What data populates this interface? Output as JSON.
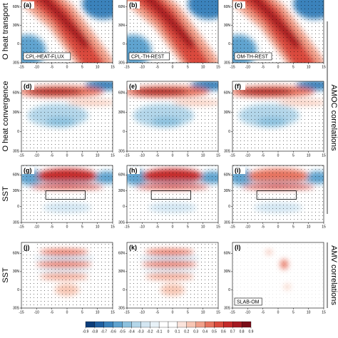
{
  "figure": {
    "panels": [
      {
        "label": "(a)",
        "name": "CPL-HEAT-FLUX"
      },
      {
        "label": "(b)",
        "name": "CPL-TH-REST"
      },
      {
        "label": "(c)",
        "name": "OM-TH-REST"
      },
      {
        "label": "(d)"
      },
      {
        "label": "(e)"
      },
      {
        "label": "(f)"
      },
      {
        "label": "(g)"
      },
      {
        "label": "(h)"
      },
      {
        "label": "(i)"
      },
      {
        "label": "(j)"
      },
      {
        "label": "(k)"
      },
      {
        "label": "(l)",
        "name": "SLAB-OM"
      }
    ],
    "row_labels": [
      "O heat transport",
      "O heat convergence",
      "SST",
      "SST"
    ],
    "side_labels": [
      "AMOC correlations",
      "AMV correlations"
    ],
    "xlim": [
      -15,
      15
    ],
    "xticks": [
      -15,
      -10,
      -5,
      0,
      5,
      10,
      15
    ],
    "ylim": [
      -30,
      78
    ],
    "yticks": [
      {
        "value": 60,
        "label": "60N"
      },
      {
        "value": 30,
        "label": "30N"
      },
      0,
      {
        "value": -30,
        "label": "30S"
      }
    ],
    "colorbar": {
      "ticks": [
        -0.9,
        -0.8,
        -0.7,
        -0.6,
        -0.5,
        -0.4,
        -0.3,
        -0.2,
        -0.1,
        0,
        0.1,
        0.2,
        0.3,
        0.4,
        0.5,
        0.6,
        0.7,
        0.8,
        0.9
      ],
      "colors": [
        "#0b3d7a",
        "#1f5fa0",
        "#3a82bb",
        "#5fa3cf",
        "#8cc1de",
        "#b3d6e9",
        "#d3e6f2",
        "#e8f2f8",
        "#ffffff",
        "#ffffff",
        "#fbe4dc",
        "#f7c6b4",
        "#f0a08a",
        "#e6735e",
        "#d94a3c",
        "#c42a2a",
        "#a61a22",
        "#7a0c17"
      ]
    }
  }
}
